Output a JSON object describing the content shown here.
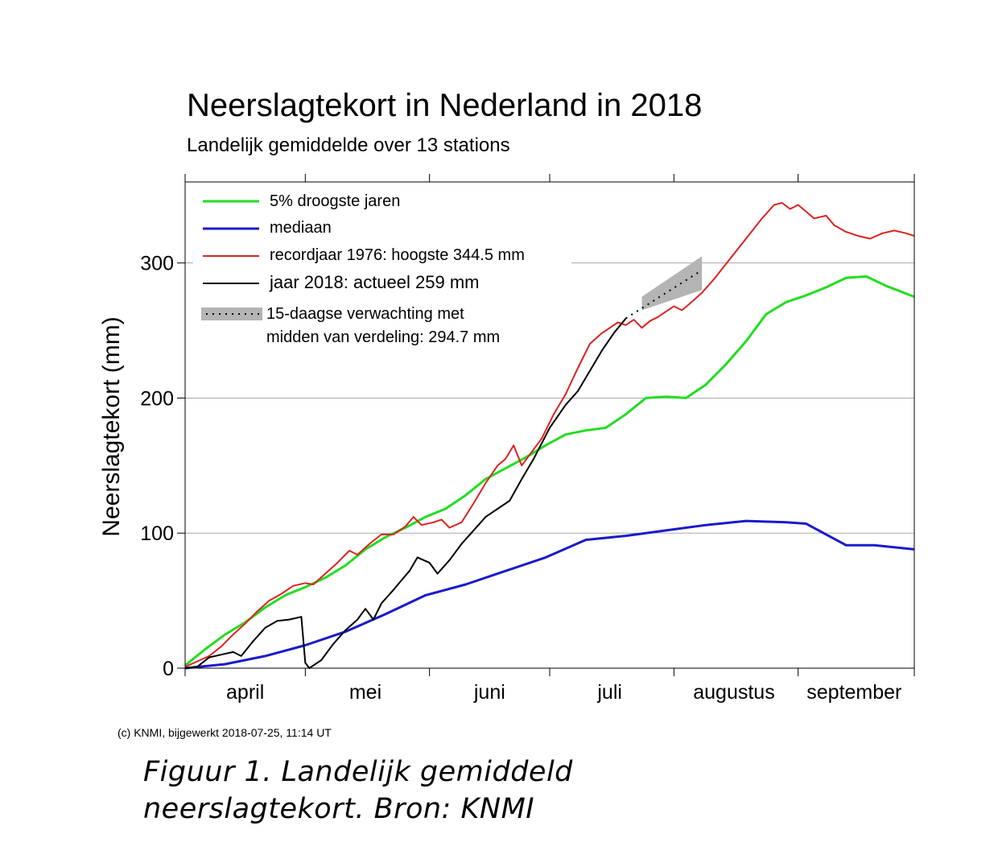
{
  "chart_data": {
    "type": "line",
    "title": "Neerslagtekort in Nederland in 2018",
    "subtitle": "Landelijk gemiddelde over 13 stations",
    "ylabel": "Neerslagtekort (mm)",
    "xlabel": "",
    "ylim": [
      0,
      360
    ],
    "yticks": [
      0,
      100,
      200,
      300
    ],
    "xlim": [
      "2018-04-01",
      "2018-09-30"
    ],
    "month_boundaries": [
      "2018-04-01",
      "2018-05-01",
      "2018-06-01",
      "2018-07-01",
      "2018-08-01",
      "2018-09-01",
      "2018-09-30"
    ],
    "month_labels": [
      {
        "label": "april",
        "date": "2018-04-16"
      },
      {
        "label": "mei",
        "date": "2018-05-16"
      },
      {
        "label": "juni",
        "date": "2018-06-16"
      },
      {
        "label": "juli",
        "date": "2018-07-16"
      },
      {
        "label": "augustus",
        "date": "2018-08-16"
      },
      {
        "label": "september",
        "date": "2018-09-15"
      }
    ],
    "grid": "horizontal at 100, 200, 300",
    "legend_position": "top-left",
    "series": [
      {
        "name": "5% droogste jaren",
        "color": "#22dd22",
        "points": [
          [
            "2018-04-01",
            2
          ],
          [
            "2018-04-06",
            14
          ],
          [
            "2018-04-11",
            25
          ],
          [
            "2018-04-16",
            34
          ],
          [
            "2018-04-21",
            45
          ],
          [
            "2018-04-26",
            54
          ],
          [
            "2018-05-01",
            60
          ],
          [
            "2018-05-06",
            67
          ],
          [
            "2018-05-11",
            76
          ],
          [
            "2018-05-16",
            88
          ],
          [
            "2018-05-21",
            97
          ],
          [
            "2018-05-26",
            104
          ],
          [
            "2018-05-31",
            112
          ],
          [
            "2018-06-05",
            118
          ],
          [
            "2018-06-10",
            128
          ],
          [
            "2018-06-15",
            140
          ],
          [
            "2018-06-20",
            148
          ],
          [
            "2018-06-25",
            156
          ],
          [
            "2018-06-30",
            165
          ],
          [
            "2018-07-05",
            173
          ],
          [
            "2018-07-10",
            176
          ],
          [
            "2018-07-15",
            178
          ],
          [
            "2018-07-20",
            188
          ],
          [
            "2018-07-25",
            200
          ],
          [
            "2018-07-30",
            201
          ],
          [
            "2018-08-04",
            200
          ],
          [
            "2018-08-09",
            210
          ],
          [
            "2018-08-14",
            225
          ],
          [
            "2018-08-19",
            242
          ],
          [
            "2018-08-24",
            262
          ],
          [
            "2018-08-29",
            271
          ],
          [
            "2018-09-03",
            276
          ],
          [
            "2018-09-08",
            282
          ],
          [
            "2018-09-13",
            289
          ],
          [
            "2018-09-18",
            290
          ],
          [
            "2018-09-23",
            283
          ],
          [
            "2018-09-30",
            275
          ]
        ]
      },
      {
        "name": "mediaan",
        "color": "#1a1acc",
        "points": [
          [
            "2018-04-01",
            0
          ],
          [
            "2018-04-11",
            3
          ],
          [
            "2018-04-21",
            9
          ],
          [
            "2018-05-01",
            17
          ],
          [
            "2018-05-11",
            27
          ],
          [
            "2018-05-21",
            40
          ],
          [
            "2018-05-31",
            54
          ],
          [
            "2018-06-10",
            62
          ],
          [
            "2018-06-20",
            72
          ],
          [
            "2018-06-30",
            82
          ],
          [
            "2018-07-10",
            95
          ],
          [
            "2018-07-20",
            98
          ],
          [
            "2018-07-30",
            102
          ],
          [
            "2018-08-09",
            106
          ],
          [
            "2018-08-19",
            109
          ],
          [
            "2018-08-29",
            108
          ],
          [
            "2018-09-03",
            107
          ],
          [
            "2018-09-08",
            99
          ],
          [
            "2018-09-13",
            91
          ],
          [
            "2018-09-20",
            91
          ],
          [
            "2018-09-30",
            88
          ]
        ]
      },
      {
        "name": "recordjaar 1976: hoogste 344.5 mm",
        "color": "#dd2222",
        "points": [
          [
            "2018-04-01",
            1
          ],
          [
            "2018-04-04",
            5
          ],
          [
            "2018-04-07",
            9
          ],
          [
            "2018-04-10",
            16
          ],
          [
            "2018-04-13",
            25
          ],
          [
            "2018-04-16",
            33
          ],
          [
            "2018-04-19",
            42
          ],
          [
            "2018-04-22",
            50
          ],
          [
            "2018-04-25",
            55
          ],
          [
            "2018-04-28",
            61
          ],
          [
            "2018-05-01",
            63
          ],
          [
            "2018-05-03",
            62
          ],
          [
            "2018-05-06",
            70
          ],
          [
            "2018-05-09",
            78
          ],
          [
            "2018-05-12",
            87
          ],
          [
            "2018-05-14",
            84
          ],
          [
            "2018-05-17",
            92
          ],
          [
            "2018-05-20",
            99
          ],
          [
            "2018-05-23",
            99
          ],
          [
            "2018-05-26",
            105
          ],
          [
            "2018-05-28",
            112
          ],
          [
            "2018-05-30",
            106
          ],
          [
            "2018-06-02",
            108
          ],
          [
            "2018-06-04",
            110
          ],
          [
            "2018-06-06",
            104
          ],
          [
            "2018-06-09",
            108
          ],
          [
            "2018-06-12",
            122
          ],
          [
            "2018-06-15",
            137
          ],
          [
            "2018-06-18",
            150
          ],
          [
            "2018-06-20",
            155
          ],
          [
            "2018-06-22",
            165
          ],
          [
            "2018-06-24",
            150
          ],
          [
            "2018-06-26",
            158
          ],
          [
            "2018-06-29",
            170
          ],
          [
            "2018-07-02",
            188
          ],
          [
            "2018-07-05",
            203
          ],
          [
            "2018-07-08",
            222
          ],
          [
            "2018-07-11",
            240
          ],
          [
            "2018-07-14",
            248
          ],
          [
            "2018-07-16",
            252
          ],
          [
            "2018-07-18",
            256
          ],
          [
            "2018-07-20",
            254
          ],
          [
            "2018-07-22",
            258
          ],
          [
            "2018-07-24",
            252
          ],
          [
            "2018-07-26",
            257
          ],
          [
            "2018-07-28",
            260
          ],
          [
            "2018-07-30",
            264
          ],
          [
            "2018-08-01",
            268
          ],
          [
            "2018-08-03",
            265
          ],
          [
            "2018-08-05",
            270
          ],
          [
            "2018-08-08",
            278
          ],
          [
            "2018-08-11",
            288
          ],
          [
            "2018-08-15",
            303
          ],
          [
            "2018-08-19",
            318
          ],
          [
            "2018-08-23",
            333
          ],
          [
            "2018-08-26",
            343
          ],
          [
            "2018-08-28",
            344.5
          ],
          [
            "2018-08-30",
            340
          ],
          [
            "2018-09-01",
            343
          ],
          [
            "2018-09-03",
            338
          ],
          [
            "2018-09-05",
            333
          ],
          [
            "2018-09-08",
            335
          ],
          [
            "2018-09-10",
            328
          ],
          [
            "2018-09-13",
            323
          ],
          [
            "2018-09-16",
            320
          ],
          [
            "2018-09-19",
            318
          ],
          [
            "2018-09-22",
            322
          ],
          [
            "2018-09-25",
            324
          ],
          [
            "2018-09-28",
            322
          ],
          [
            "2018-09-30",
            320
          ]
        ]
      },
      {
        "name": "jaar 2018: actueel 259 mm",
        "color": "#000000",
        "points": [
          [
            "2018-04-01",
            0
          ],
          [
            "2018-04-04",
            1
          ],
          [
            "2018-04-07",
            8
          ],
          [
            "2018-04-10",
            10
          ],
          [
            "2018-04-13",
            12
          ],
          [
            "2018-04-15",
            9
          ],
          [
            "2018-04-18",
            20
          ],
          [
            "2018-04-21",
            30
          ],
          [
            "2018-04-24",
            35
          ],
          [
            "2018-04-27",
            36
          ],
          [
            "2018-04-30",
            38
          ],
          [
            "2018-05-01",
            4
          ],
          [
            "2018-05-02",
            0
          ],
          [
            "2018-05-05",
            6
          ],
          [
            "2018-05-08",
            18
          ],
          [
            "2018-05-11",
            28
          ],
          [
            "2018-05-14",
            36
          ],
          [
            "2018-05-16",
            44
          ],
          [
            "2018-05-18",
            36
          ],
          [
            "2018-05-20",
            48
          ],
          [
            "2018-05-23",
            58
          ],
          [
            "2018-05-25",
            65
          ],
          [
            "2018-05-27",
            72
          ],
          [
            "2018-05-29",
            82
          ],
          [
            "2018-06-01",
            78
          ],
          [
            "2018-06-03",
            70
          ],
          [
            "2018-06-06",
            80
          ],
          [
            "2018-06-09",
            92
          ],
          [
            "2018-06-12",
            102
          ],
          [
            "2018-06-15",
            112
          ],
          [
            "2018-06-18",
            118
          ],
          [
            "2018-06-21",
            124
          ],
          [
            "2018-06-24",
            140
          ],
          [
            "2018-06-27",
            155
          ],
          [
            "2018-07-01",
            178
          ],
          [
            "2018-07-05",
            195
          ],
          [
            "2018-07-08",
            205
          ],
          [
            "2018-07-11",
            220
          ],
          [
            "2018-07-14",
            235
          ],
          [
            "2018-07-17",
            248
          ],
          [
            "2018-07-20",
            259
          ]
        ]
      }
    ],
    "forecast": {
      "name": "15-daagse verwachting met\nmidden van verdeling: 294.7 mm",
      "color": "#b4b4b4",
      "start": {
        "date": "2018-07-24",
        "lower": 265,
        "upper": 275
      },
      "end": {
        "date": "2018-08-08",
        "lower": 280,
        "upper": 305
      },
      "median": [
        [
          "2018-07-20",
          259
        ],
        [
          "2018-08-08",
          294.7
        ]
      ]
    }
  },
  "legend_labels": [
    "5% droogste jaren",
    "mediaan",
    "recordjaar 1976: hoogste 344.5 mm",
    "jaar 2018: actueel 259 mm",
    "15-daagse verwachting met",
    "midden van verdeling: 294.7 mm"
  ],
  "credit": "(c) KNMI, bijgewerkt 2018-07-25, 11:14 UT",
  "caption": {
    "line1": "Figuur 1. Landelijk gemiddeld",
    "line2": "neerslagtekort. Bron: KNMI"
  }
}
